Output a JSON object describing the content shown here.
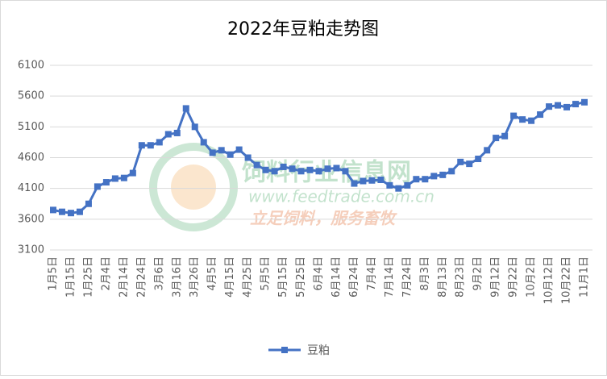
{
  "chart_data": {
    "type": "line",
    "title": "2022年豆粕走势图",
    "categories": [
      "1月5日",
      null,
      "1月15日",
      null,
      "1月25日",
      null,
      "2月4日",
      null,
      "2月14日",
      null,
      "2月24日",
      null,
      "3月6日",
      null,
      "3月16日",
      null,
      "3月26日",
      null,
      "4月5日",
      null,
      "4月15日",
      null,
      "4月25日",
      null,
      "5月5日",
      null,
      "5月15日",
      null,
      "5月25日",
      null,
      "6月4日",
      null,
      "6月14日",
      null,
      "6月24日",
      null,
      "7月4日",
      null,
      "7月14日",
      null,
      "7月24日",
      null,
      "8月3日",
      null,
      "8月13日",
      null,
      "8月23日",
      null,
      "9月2日",
      null,
      "9月12日",
      null,
      "9月22日",
      null,
      "10月2日",
      null,
      "10月12日",
      null,
      "10月22日",
      null,
      "11月1日"
    ],
    "series": [
      {
        "name": "豆粕",
        "color": "#4472c4",
        "values": [
          3750,
          3720,
          3700,
          3720,
          3850,
          4130,
          4200,
          4260,
          4270,
          4350,
          4800,
          4800,
          4850,
          4980,
          5000,
          5400,
          5100,
          4850,
          4680,
          4720,
          4650,
          4730,
          4600,
          4480,
          4400,
          4380,
          4450,
          4420,
          4380,
          4400,
          4380,
          4420,
          4430,
          4380,
          4180,
          4220,
          4230,
          4240,
          4150,
          4100,
          4150,
          4250,
          4250,
          4300,
          4320,
          4380,
          4530,
          4500,
          4580,
          4720,
          4920,
          4950,
          5280,
          5220,
          5200,
          5300,
          5430,
          5450,
          5420,
          5470,
          5500
        ]
      }
    ],
    "ylim": [
      3100,
      6100
    ],
    "yticks": [
      3100,
      3600,
      4100,
      4600,
      5100,
      5600,
      6100
    ],
    "grid": true,
    "legend": "bottom",
    "watermark": {
      "name": "饲料行业信息网",
      "url": "www.feedtrade.com.cn",
      "slogan": "立足饲料，服务畜牧"
    }
  }
}
